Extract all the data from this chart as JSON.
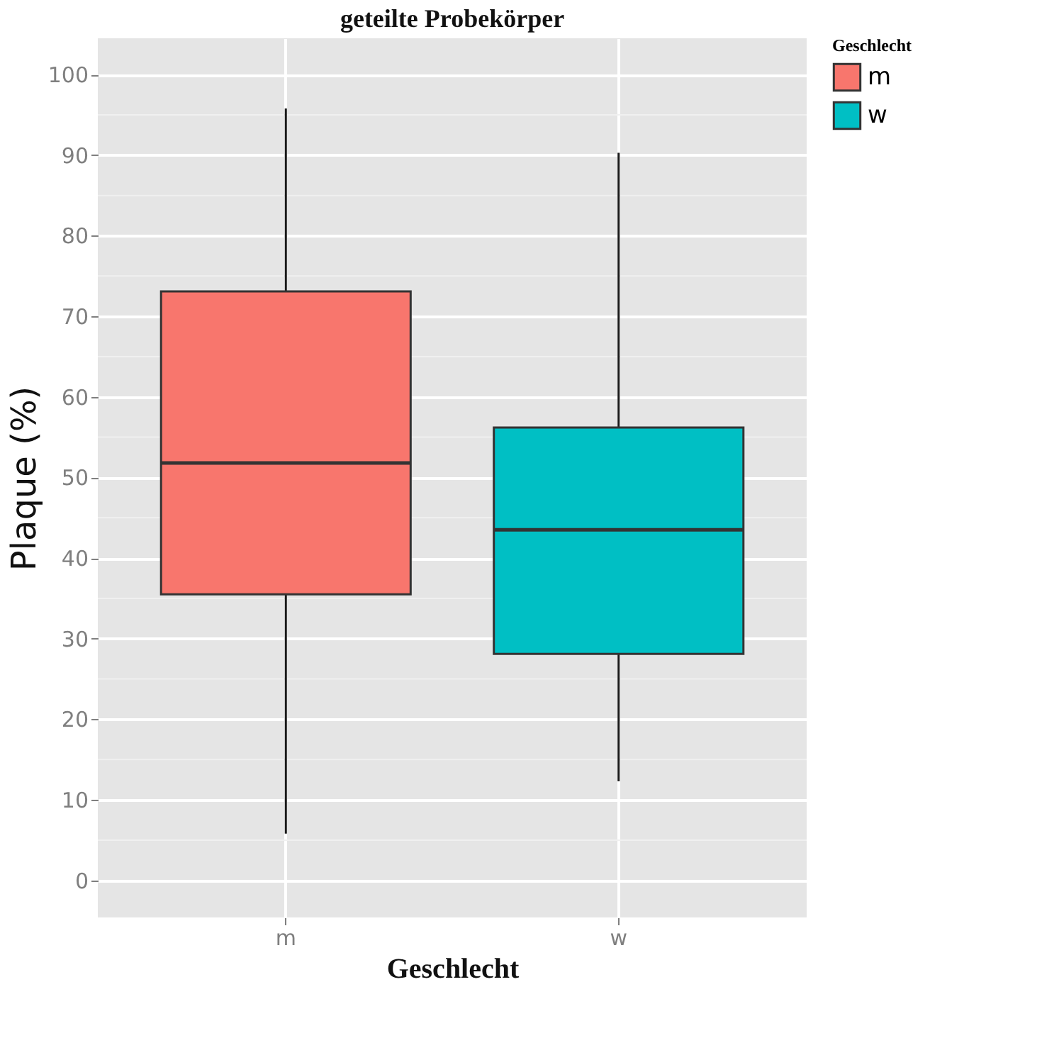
{
  "chart_data": {
    "type": "box",
    "title": "geteilte Probekörper",
    "xlabel": "Geschlecht",
    "ylabel": "Plaque (%)",
    "legend_title": "Geschlecht",
    "categories": [
      "m",
      "w"
    ],
    "series": [
      {
        "name": "m",
        "color": "#f8766d",
        "boxes": [
          {
            "low": 5.8,
            "q1": 35.5,
            "median": 51.8,
            "q3": 73.1,
            "high": 95.8
          },
          null
        ]
      },
      {
        "name": "w",
        "color": "#00bfc4",
        "boxes": [
          null,
          {
            "low": 12.3,
            "q1": 28.1,
            "median": 43.5,
            "q3": 56.2,
            "high": 90.3
          }
        ]
      }
    ],
    "ylim": [
      -4.6,
      104.5
    ],
    "yticks": [
      0,
      10,
      20,
      30,
      40,
      50,
      60,
      70,
      80,
      90,
      100
    ],
    "grid": true,
    "legend": "right"
  }
}
